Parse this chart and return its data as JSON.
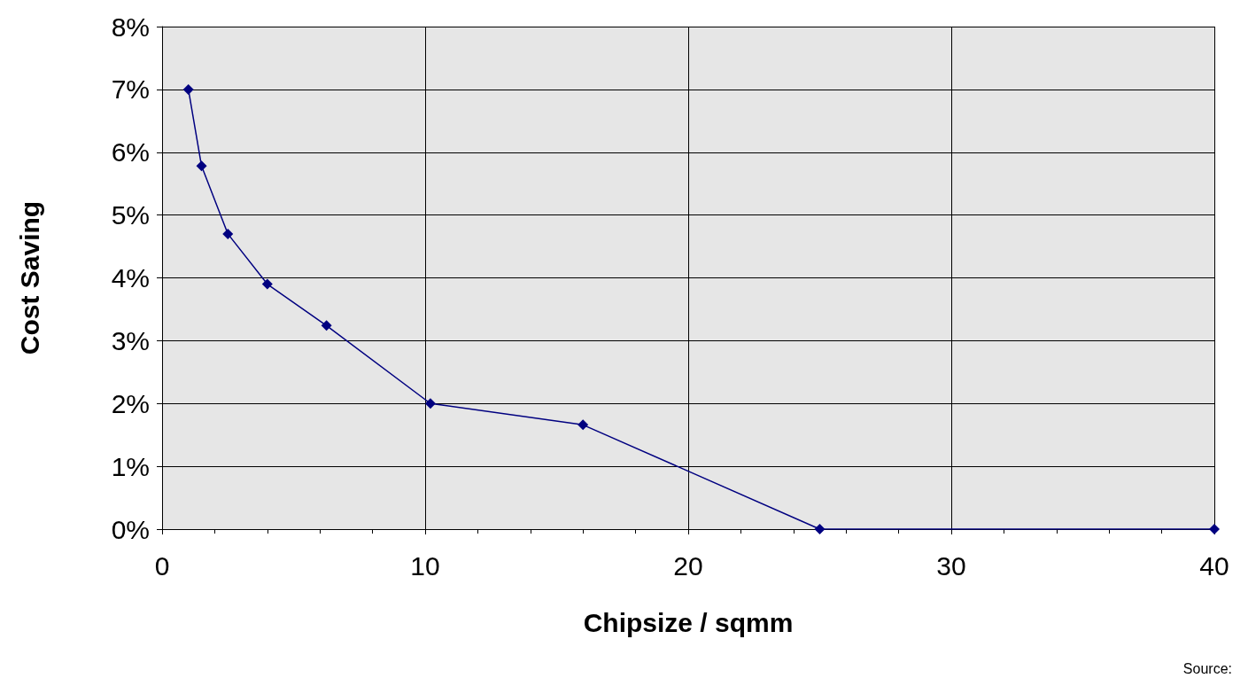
{
  "chart_data": {
    "type": "line",
    "xlabel": "Chipsize / sqmm",
    "ylabel": "Cost Saving",
    "x": [
      1.0,
      1.5,
      2.5,
      4.0,
      6.25,
      10.2,
      16.0,
      25,
      40
    ],
    "series": [
      {
        "color": "#000080",
        "values": [
          7.0,
          5.78,
          4.7,
          3.9,
          3.24,
          2.0,
          1.66,
          0,
          0
        ]
      }
    ],
    "xlim": [
      0,
      40
    ],
    "xticks": [
      0,
      10,
      20,
      30,
      40
    ],
    "ylim": [
      0,
      8
    ],
    "yticks": [
      {
        "value": 0,
        "label": "0%"
      },
      {
        "value": 1,
        "label": "1%"
      },
      {
        "value": 2,
        "label": "2%"
      },
      {
        "value": 3,
        "label": "3%"
      },
      {
        "value": 4,
        "label": "4%"
      },
      {
        "value": 5,
        "label": "5%"
      },
      {
        "value": 6,
        "label": "6%"
      },
      {
        "value": 7,
        "label": "7%"
      },
      {
        "value": 8,
        "label": "8%"
      }
    ],
    "grid": true,
    "marker": "diamond",
    "line_style": "solid",
    "annotations": [
      "Source:"
    ]
  }
}
